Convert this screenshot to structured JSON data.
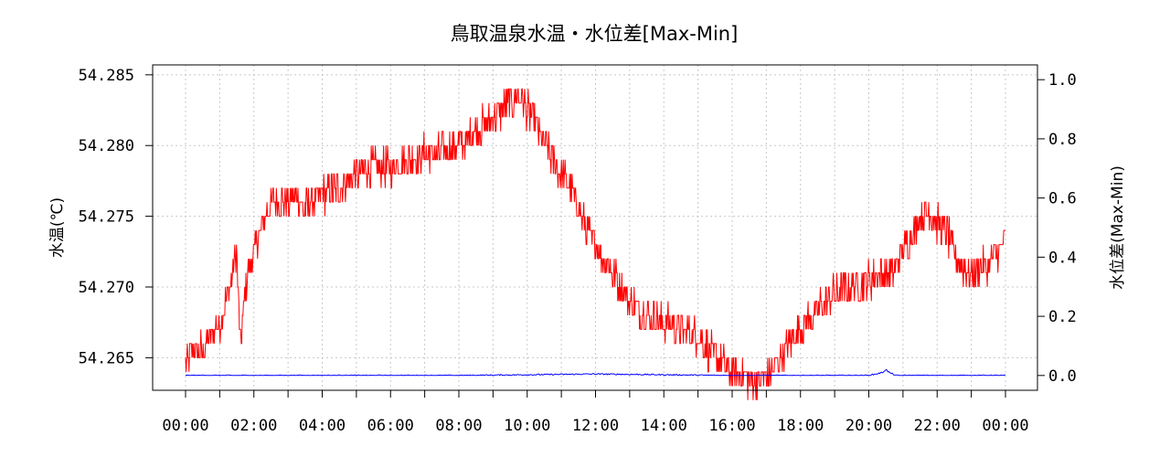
{
  "chart_data": {
    "type": "line",
    "title": "鳥取温泉水温・水位差[Max-Min]",
    "ylabel_left": "水温(℃)",
    "ylabel_right": "水位差(Max-Min)",
    "xlabel": "",
    "x_ticks": [
      "00:00",
      "02:00",
      "04:00",
      "06:00",
      "08:00",
      "10:00",
      "12:00",
      "14:00",
      "16:00",
      "18:00",
      "20:00",
      "22:00",
      "00:00"
    ],
    "x_range_hours": [
      0,
      24
    ],
    "y_left_ticks": [
      "54.265",
      "54.270",
      "54.275",
      "54.280",
      "54.285"
    ],
    "y_left_range": [
      54.2627,
      54.2857
    ],
    "y_right_ticks": [
      "0.0",
      "0.2",
      "0.4",
      "0.6",
      "0.8",
      "1.0"
    ],
    "y_right_range": [
      -0.05,
      1.05
    ],
    "grid": true,
    "series": [
      {
        "axis": "left",
        "color": "#ff0000",
        "x_hours": [
          0,
          0.25,
          0.5,
          0.75,
          1.0,
          1.25,
          1.5,
          1.6,
          1.75,
          2.0,
          2.25,
          2.5,
          2.75,
          3.0,
          3.25,
          3.5,
          3.75,
          4.0,
          4.5,
          5.0,
          5.5,
          6.0,
          6.5,
          7.0,
          7.5,
          8.0,
          8.5,
          9.0,
          9.5,
          9.75,
          10.0,
          10.25,
          10.5,
          10.75,
          11.0,
          11.25,
          11.5,
          11.75,
          12.0,
          12.5,
          13.0,
          13.5,
          14.0,
          14.5,
          15.0,
          15.5,
          16.0,
          16.5,
          17.0,
          17.25,
          17.5,
          18.0,
          18.5,
          19.0,
          19.5,
          20.0,
          20.5,
          20.75,
          21.0,
          21.25,
          21.5,
          21.75,
          22.0,
          22.25,
          22.5,
          22.75,
          23.0,
          23.25,
          23.5,
          23.75,
          24.0
        ],
        "values": [
          54.2645,
          54.2655,
          54.2655,
          54.2665,
          54.2675,
          54.2695,
          54.2725,
          54.2655,
          54.27,
          54.2725,
          54.2745,
          54.276,
          54.276,
          54.276,
          54.2765,
          54.2755,
          54.276,
          54.2765,
          54.277,
          54.278,
          54.2785,
          54.2785,
          54.279,
          54.2795,
          54.2795,
          54.28,
          54.281,
          54.282,
          54.283,
          54.2835,
          54.2825,
          54.2815,
          54.28,
          54.279,
          54.278,
          54.277,
          54.2755,
          54.274,
          54.273,
          54.271,
          54.269,
          54.268,
          54.2675,
          54.267,
          54.2665,
          54.265,
          54.264,
          54.2635,
          54.2635,
          54.2645,
          54.2655,
          54.267,
          54.2685,
          54.2695,
          54.27,
          54.2705,
          54.271,
          54.271,
          54.2725,
          54.2735,
          54.275,
          54.2755,
          54.2745,
          54.274,
          54.2725,
          54.2715,
          54.271,
          54.2715,
          54.2715,
          54.2725,
          54.2735
        ]
      },
      {
        "axis": "right",
        "color": "#0000ff",
        "x_hours": [
          0,
          4,
          8,
          12,
          16,
          20,
          20.4,
          20.5,
          20.6,
          20.8,
          24
        ],
        "values": [
          0.0,
          0.0,
          0.0,
          0.005,
          0.0,
          0.0,
          0.01,
          0.02,
          0.01,
          0.0,
          0.0
        ]
      }
    ]
  }
}
